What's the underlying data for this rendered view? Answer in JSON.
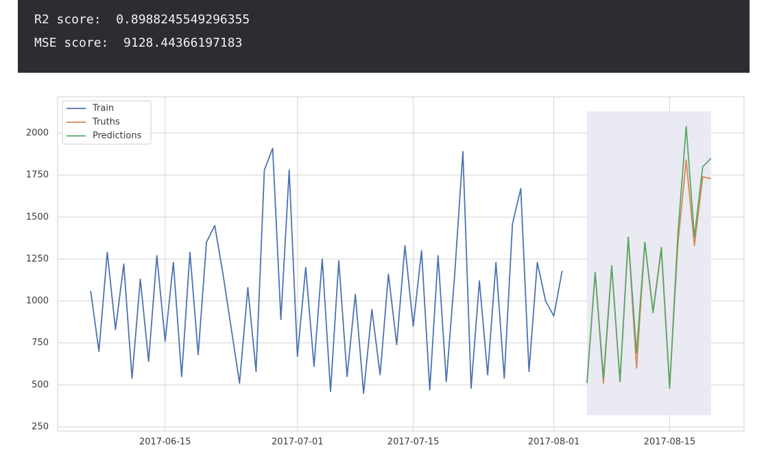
{
  "output": {
    "lines": [
      "R2 score:  0.8988245549296355",
      "MSE score:  9128.44366197183"
    ]
  },
  "chart_data": {
    "type": "line",
    "xlim": [
      "2017-06-02",
      "2017-08-24"
    ],
    "xticks": [
      "2017-06-15",
      "2017-07-01",
      "2017-07-15",
      "2017-08-01",
      "2017-08-15"
    ],
    "ylim": [
      225,
      2217
    ],
    "yticks": [
      250,
      500,
      750,
      1000,
      1250,
      1500,
      1750,
      2000
    ],
    "grid": true,
    "legend": "upper left",
    "shaded_region": {
      "xlim": [
        "2017-08-05",
        "2017-08-20"
      ],
      "ylim": [
        320,
        2130
      ],
      "color": "#eaeaf2"
    },
    "series": [
      {
        "name": "Train",
        "color": "#4c72b0",
        "x": [
          "2017-06-06",
          "2017-06-07",
          "2017-06-08",
          "2017-06-09",
          "2017-06-10",
          "2017-06-11",
          "2017-06-12",
          "2017-06-13",
          "2017-06-14",
          "2017-06-15",
          "2017-06-16",
          "2017-06-17",
          "2017-06-18",
          "2017-06-19",
          "2017-06-20",
          "2017-06-21",
          "2017-06-22",
          "2017-06-24",
          "2017-06-25",
          "2017-06-26",
          "2017-06-27",
          "2017-06-28",
          "2017-06-29",
          "2017-06-30",
          "2017-07-01",
          "2017-07-02",
          "2017-07-03",
          "2017-07-04",
          "2017-07-05",
          "2017-07-06",
          "2017-07-07",
          "2017-07-08",
          "2017-07-09",
          "2017-07-10",
          "2017-07-11",
          "2017-07-12",
          "2017-07-13",
          "2017-07-14",
          "2017-07-15",
          "2017-07-16",
          "2017-07-17",
          "2017-07-18",
          "2017-07-19",
          "2017-07-20",
          "2017-07-21",
          "2017-07-22",
          "2017-07-23",
          "2017-07-24",
          "2017-07-25",
          "2017-07-26",
          "2017-07-27",
          "2017-07-28",
          "2017-07-29",
          "2017-07-30",
          "2017-07-31",
          "2017-08-01",
          "2017-08-02"
        ],
        "values": [
          1060,
          700,
          1290,
          830,
          1220,
          540,
          1130,
          640,
          1270,
          760,
          1230,
          550,
          1290,
          680,
          1350,
          1450,
          1160,
          510,
          1080,
          580,
          1780,
          1910,
          890,
          1780,
          670,
          1200,
          610,
          1250,
          460,
          1240,
          550,
          1040,
          450,
          950,
          560,
          1160,
          740,
          1330,
          850,
          1300,
          470,
          1270,
          520,
          1150,
          1890,
          480,
          1120,
          560,
          1230,
          540,
          1460,
          1670,
          580,
          1230,
          1000,
          910,
          1180
        ]
      },
      {
        "name": "Truths",
        "color": "#dd8452",
        "x": [
          "2017-08-05",
          "2017-08-06",
          "2017-08-07",
          "2017-08-08",
          "2017-08-09",
          "2017-08-10",
          "2017-08-11",
          "2017-08-12",
          "2017-08-13",
          "2017-08-14",
          "2017-08-15",
          "2017-08-16",
          "2017-08-17",
          "2017-08-18",
          "2017-08-19",
          "2017-08-20"
        ],
        "values": [
          510,
          1170,
          510,
          1210,
          520,
          1380,
          600,
          1350,
          940,
          1320,
          490,
          1340,
          1840,
          1330,
          1740,
          1730
        ]
      },
      {
        "name": "Predictions",
        "color": "#55a868",
        "x": [
          "2017-08-05",
          "2017-08-06",
          "2017-08-07",
          "2017-08-08",
          "2017-08-09",
          "2017-08-10",
          "2017-08-11",
          "2017-08-12",
          "2017-08-13",
          "2017-08-14",
          "2017-08-15",
          "2017-08-16",
          "2017-08-17",
          "2017-08-18",
          "2017-08-19",
          "2017-08-20"
        ],
        "values": [
          510,
          1170,
          540,
          1210,
          520,
          1380,
          690,
          1350,
          930,
          1310,
          480,
          1400,
          2040,
          1380,
          1800,
          1850
        ]
      }
    ]
  }
}
